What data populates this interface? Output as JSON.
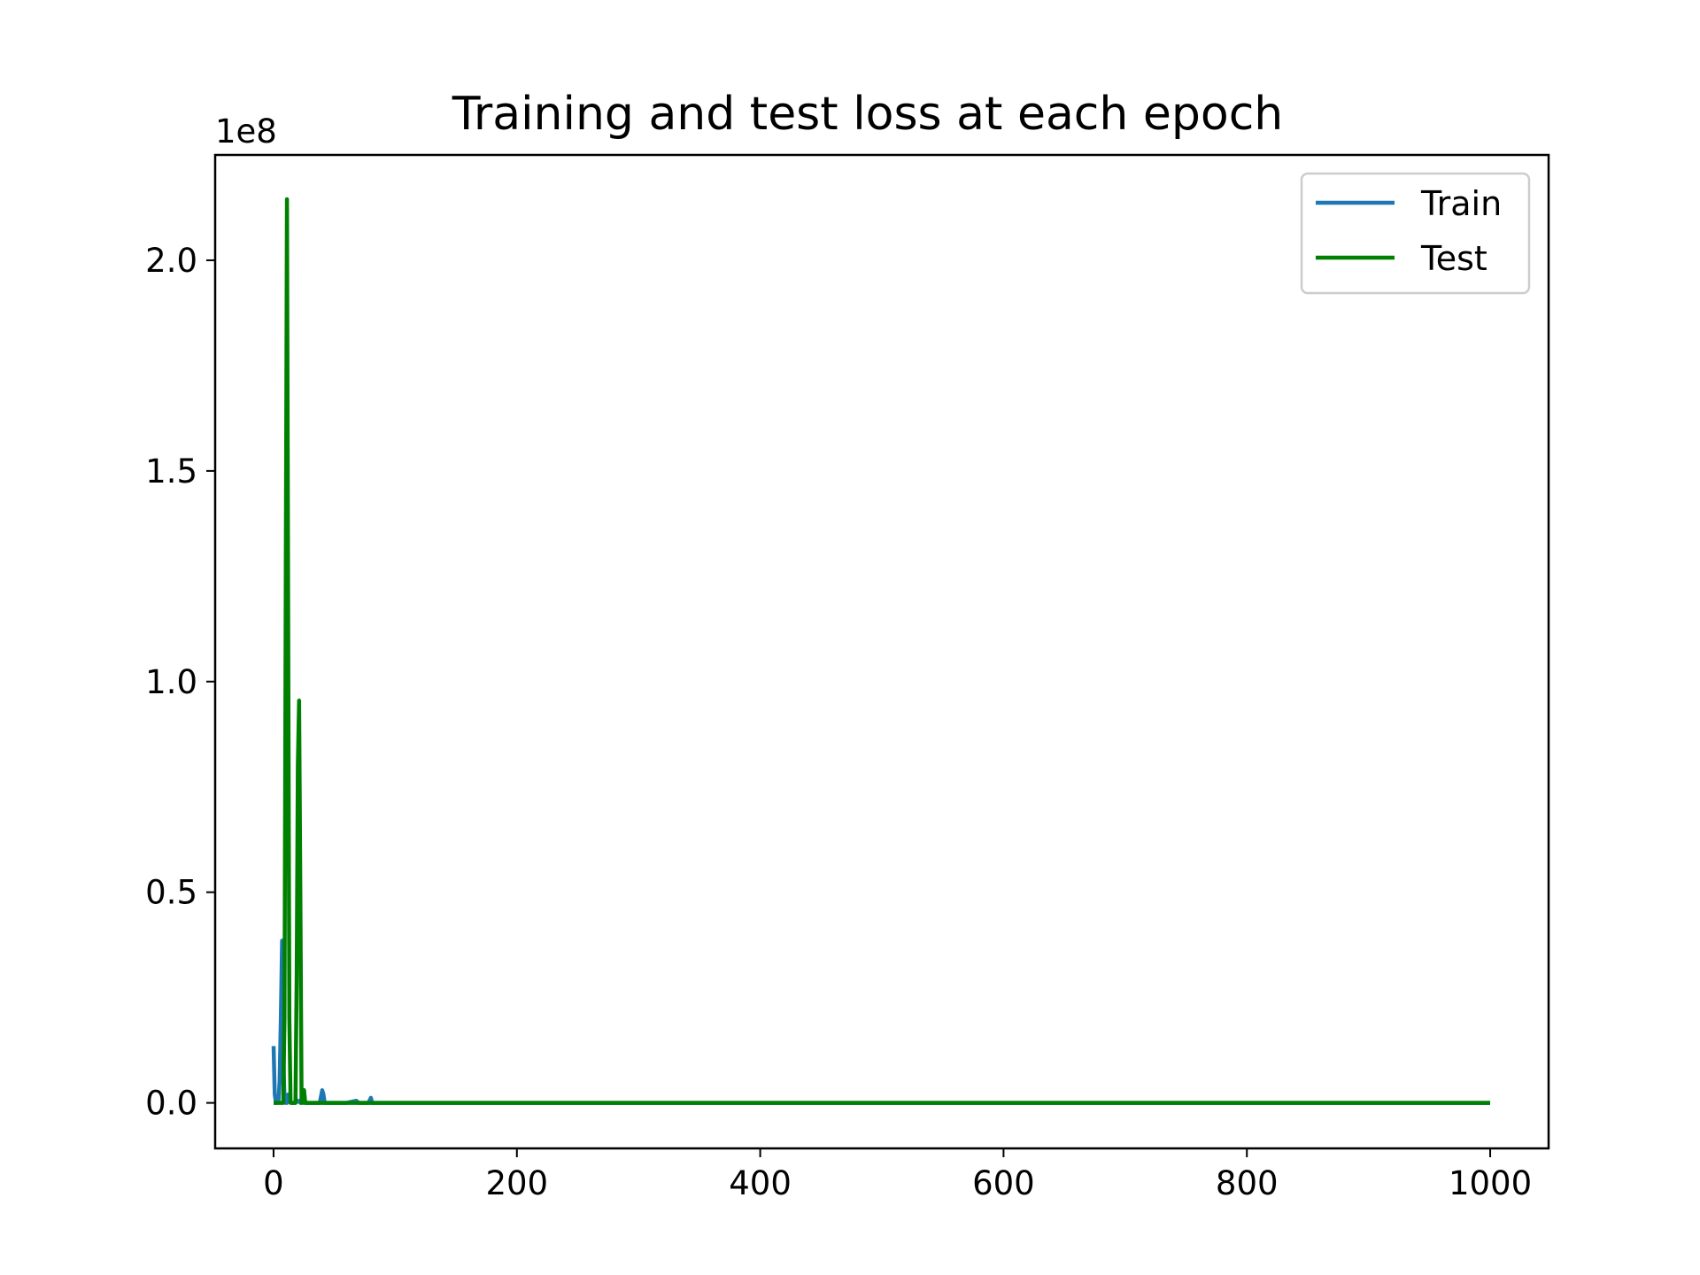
{
  "chart_data": {
    "type": "line",
    "title": "Training and test loss at each epoch",
    "xlabel": "",
    "ylabel": "",
    "y_offset_label": "1e8",
    "xlim": [
      -48,
      1048
    ],
    "ylim": [
      -0.108,
      2.25
    ],
    "x_ticks": [
      0,
      200,
      400,
      600,
      800,
      1000
    ],
    "x_tick_labels": [
      "0",
      "200",
      "400",
      "600",
      "800",
      "1000"
    ],
    "y_ticks": [
      0.0,
      0.5,
      1.0,
      1.5,
      2.0
    ],
    "y_tick_labels": [
      "0.0",
      "0.5",
      "1.0",
      "1.5",
      "2.0"
    ],
    "legend_position": "upper-right",
    "grid": false,
    "series": [
      {
        "name": "Train",
        "color": "#1f77b4",
        "points": [
          [
            0,
            0.135
          ],
          [
            1,
            0.02
          ],
          [
            2,
            0.0
          ],
          [
            3,
            0.0
          ],
          [
            4,
            0.005
          ],
          [
            5,
            0.05
          ],
          [
            6,
            0.2
          ],
          [
            7,
            0.385
          ],
          [
            8,
            0.12
          ],
          [
            9,
            0.01
          ],
          [
            10,
            0.0
          ],
          [
            11,
            0.0
          ],
          [
            12,
            0.02
          ],
          [
            13,
            0.005
          ],
          [
            15,
            0.0
          ],
          [
            18,
            0.0
          ],
          [
            20,
            0.005
          ],
          [
            22,
            0.0
          ],
          [
            25,
            0.03
          ],
          [
            26,
            0.0
          ],
          [
            30,
            0.0
          ],
          [
            35,
            0.0
          ],
          [
            38,
            0.0
          ],
          [
            40,
            0.03
          ],
          [
            41,
            0.02
          ],
          [
            42,
            0.0
          ],
          [
            50,
            0.0
          ],
          [
            60,
            0.0
          ],
          [
            68,
            0.005
          ],
          [
            70,
            0.0
          ],
          [
            78,
            0.0
          ],
          [
            80,
            0.012
          ],
          [
            81,
            0.0
          ],
          [
            90,
            0.0
          ],
          [
            100,
            0.0
          ],
          [
            1000,
            0.0
          ]
        ]
      },
      {
        "name": "Test",
        "color": "#008000",
        "points": [
          [
            0,
            0.0
          ],
          [
            5,
            0.0
          ],
          [
            8,
            0.0
          ],
          [
            9,
            0.2
          ],
          [
            10,
            1.2
          ],
          [
            11,
            2.145
          ],
          [
            12,
            1.2
          ],
          [
            13,
            0.2
          ],
          [
            14,
            0.0
          ],
          [
            18,
            0.0
          ],
          [
            19,
            0.3
          ],
          [
            20,
            0.8
          ],
          [
            21,
            0.955
          ],
          [
            22,
            0.5
          ],
          [
            23,
            0.0
          ],
          [
            24,
            0.0
          ],
          [
            25,
            0.03
          ],
          [
            26,
            0.0
          ],
          [
            30,
            0.0
          ],
          [
            1000,
            0.0
          ]
        ]
      }
    ]
  }
}
